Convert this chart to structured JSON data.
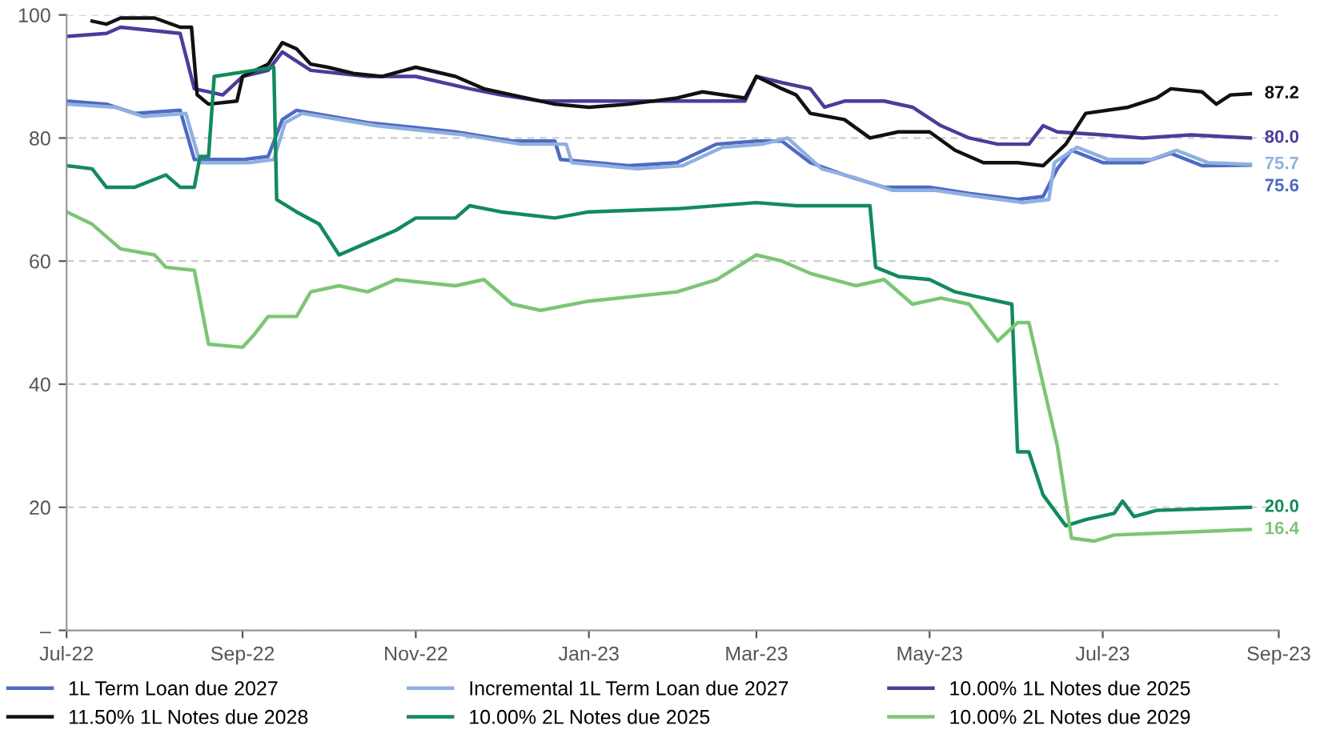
{
  "chart_data": {
    "type": "line",
    "xlim": [
      "2022-07-01",
      "2023-09-01"
    ],
    "xticks": [
      {
        "value": "2022-07-01",
        "label": "Jul-22"
      },
      {
        "value": "2022-09-01",
        "label": "Sep-22"
      },
      {
        "value": "2022-11-01",
        "label": "Nov-22"
      },
      {
        "value": "2023-01-01",
        "label": "Jan-23"
      },
      {
        "value": "2023-03-01",
        "label": "Mar-23"
      },
      {
        "value": "2023-05-01",
        "label": "May-23"
      },
      {
        "value": "2023-07-01",
        "label": "Jul-23"
      },
      {
        "value": "2023-09-01",
        "label": "Sep-23"
      }
    ],
    "ylim": [
      0,
      100
    ],
    "yticks": [
      {
        "value": 0,
        "label": "–"
      },
      20,
      40,
      60,
      80,
      100
    ],
    "grid": "y",
    "legend": "bottom",
    "line_style": "solid",
    "marker": "none",
    "series": [
      {
        "name": "1L Term Loan due 2027",
        "color": "#4e6ac2",
        "x": [
          "2022-07-01",
          "2022-07-15",
          "2022-07-25",
          "2022-08-10",
          "2022-08-15",
          "2022-09-01",
          "2022-09-10",
          "2022-09-15",
          "2022-09-20",
          "2022-10-15",
          "2022-11-15",
          "2022-12-05",
          "2022-12-20",
          "2022-12-22",
          "2023-01-15",
          "2023-02-01",
          "2023-02-15",
          "2023-03-01",
          "2023-03-10",
          "2023-03-20",
          "2023-04-01",
          "2023-04-15",
          "2023-05-01",
          "2023-05-15",
          "2023-06-01",
          "2023-06-10",
          "2023-06-15",
          "2023-06-20",
          "2023-07-01",
          "2023-07-15",
          "2023-07-25",
          "2023-08-05",
          "2023-08-22"
        ],
        "values": [
          86,
          85.5,
          84,
          84.5,
          76.5,
          76.5,
          77,
          83,
          84.5,
          82.5,
          81,
          79.5,
          79.5,
          76.5,
          75.5,
          76,
          79,
          79.5,
          79.5,
          76,
          74,
          72,
          72,
          71,
          70,
          70.5,
          75,
          78,
          76,
          76,
          77.5,
          75.5,
          75.6
        ],
        "value_labels": [
          null,
          null,
          null,
          null,
          null,
          null,
          null,
          null,
          null,
          null,
          null,
          null,
          null,
          null,
          null,
          null,
          null,
          null,
          null,
          null,
          null,
          null,
          null,
          null,
          null,
          null,
          null,
          null,
          null,
          null,
          null,
          null,
          "75.6"
        ]
      },
      {
        "name": "Incremental 1L Term Loan due 2027",
        "color": "#8fb0e0",
        "x": [
          "2022-07-01",
          "2022-07-18",
          "2022-07-28",
          "2022-08-12",
          "2022-08-17",
          "2022-09-03",
          "2022-09-12",
          "2022-09-16",
          "2022-09-22",
          "2022-10-18",
          "2022-11-18",
          "2022-12-08",
          "2022-12-24",
          "2022-12-26",
          "2023-01-18",
          "2023-02-03",
          "2023-02-17",
          "2023-03-03",
          "2023-03-12",
          "2023-03-24",
          "2023-04-05",
          "2023-04-18",
          "2023-05-03",
          "2023-05-18",
          "2023-06-03",
          "2023-06-12",
          "2023-06-14",
          "2023-06-22",
          "2023-07-03",
          "2023-07-18",
          "2023-07-27",
          "2023-08-07",
          "2023-08-22"
        ],
        "values": [
          85.5,
          85,
          83.5,
          84,
          76,
          76,
          76.5,
          82.5,
          84,
          82,
          80.5,
          79,
          79,
          76,
          75,
          75.5,
          78.5,
          79,
          80,
          75,
          73.5,
          71.5,
          71.5,
          70.5,
          69.5,
          70,
          76,
          78.5,
          76.5,
          76.5,
          78,
          76,
          75.7
        ],
        "value_labels": [
          null,
          null,
          null,
          null,
          null,
          null,
          null,
          null,
          null,
          null,
          null,
          null,
          null,
          null,
          null,
          null,
          null,
          null,
          null,
          null,
          null,
          null,
          null,
          null,
          null,
          null,
          null,
          null,
          null,
          null,
          null,
          null,
          "75.7"
        ]
      },
      {
        "name": "10.00% 1L Notes due 2025",
        "color": "#4a3d9a",
        "x": [
          "2022-07-01",
          "2022-07-15",
          "2022-07-20",
          "2022-08-10",
          "2022-08-15",
          "2022-08-25",
          "2022-09-01",
          "2022-09-10",
          "2022-09-15",
          "2022-09-25",
          "2022-10-15",
          "2022-11-01",
          "2022-11-20",
          "2022-12-01",
          "2022-12-15",
          "2023-01-01",
          "2023-02-25",
          "2023-03-01",
          "2023-03-10",
          "2023-03-20",
          "2023-03-25",
          "2023-04-01",
          "2023-04-15",
          "2023-04-25",
          "2023-05-05",
          "2023-05-15",
          "2023-05-25",
          "2023-06-05",
          "2023-06-10",
          "2023-06-15",
          "2023-07-01",
          "2023-07-15",
          "2023-08-01",
          "2023-08-22"
        ],
        "values": [
          96.5,
          97,
          98,
          97,
          88,
          87,
          90,
          91,
          94,
          91,
          90,
          90,
          88,
          87,
          86,
          86,
          86,
          90,
          89,
          88,
          85,
          86,
          86,
          85,
          82,
          80,
          79,
          79,
          82,
          81,
          80.5,
          80,
          80.5,
          80.0
        ],
        "value_labels": [
          null,
          null,
          null,
          null,
          null,
          null,
          null,
          null,
          null,
          null,
          null,
          null,
          null,
          null,
          null,
          null,
          null,
          null,
          null,
          null,
          null,
          null,
          null,
          null,
          null,
          null,
          null,
          null,
          null,
          null,
          null,
          null,
          null,
          "80.0"
        ]
      },
      {
        "name": "11.50% 1L Notes due 2028",
        "color": "#111111",
        "x": [
          "2022-07-10",
          "2022-07-15",
          "2022-07-20",
          "2022-08-01",
          "2022-08-10",
          "2022-08-14",
          "2022-08-16",
          "2022-08-20",
          "2022-08-30",
          "2022-09-01",
          "2022-09-10",
          "2022-09-15",
          "2022-09-20",
          "2022-09-25",
          "2022-10-01",
          "2022-10-10",
          "2022-10-20",
          "2022-11-01",
          "2022-11-15",
          "2022-11-25",
          "2022-12-05",
          "2022-12-20",
          "2023-01-01",
          "2023-01-15",
          "2023-02-01",
          "2023-02-10",
          "2023-02-25",
          "2023-03-01",
          "2023-03-10",
          "2023-03-15",
          "2023-03-20",
          "2023-04-01",
          "2023-04-10",
          "2023-04-20",
          "2023-05-01",
          "2023-05-10",
          "2023-05-20",
          "2023-06-01",
          "2023-06-10",
          "2023-06-18",
          "2023-06-25",
          "2023-07-10",
          "2023-07-20",
          "2023-07-25",
          "2023-08-05",
          "2023-08-10",
          "2023-08-15",
          "2023-08-22"
        ],
        "values": [
          99,
          98.5,
          99.5,
          99.5,
          98,
          98,
          87,
          85.5,
          86,
          90,
          92,
          95.5,
          94.5,
          92,
          91.5,
          90.5,
          90,
          91.5,
          90,
          88,
          87,
          85.5,
          85,
          85.5,
          86.5,
          87.5,
          86.5,
          90,
          88,
          87,
          84,
          83,
          80,
          81,
          81,
          78,
          76,
          76,
          75.5,
          79,
          84,
          85,
          86.5,
          88,
          87.5,
          85.5,
          87,
          87.2
        ],
        "value_labels": [
          null,
          null,
          null,
          null,
          null,
          null,
          null,
          null,
          null,
          null,
          null,
          null,
          null,
          null,
          null,
          null,
          null,
          null,
          null,
          null,
          null,
          null,
          null,
          null,
          null,
          null,
          null,
          null,
          null,
          null,
          null,
          null,
          null,
          null,
          null,
          null,
          null,
          null,
          null,
          null,
          null,
          null,
          null,
          null,
          null,
          null,
          null,
          "87.2"
        ]
      },
      {
        "name": "10.00% 2L Notes due 2025",
        "color": "#138a5a",
        "x": [
          "2022-07-01",
          "2022-07-10",
          "2022-07-15",
          "2022-07-25",
          "2022-08-05",
          "2022-08-10",
          "2022-08-15",
          "2022-08-17",
          "2022-08-20",
          "2022-08-22",
          "2022-09-05",
          "2022-09-12",
          "2022-09-13",
          "2022-09-20",
          "2022-09-28",
          "2022-10-05",
          "2022-10-15",
          "2022-10-25",
          "2022-11-01",
          "2022-11-15",
          "2022-11-20",
          "2022-12-01",
          "2022-12-20",
          "2023-01-01",
          "2023-02-01",
          "2023-03-01",
          "2023-03-15",
          "2023-04-10",
          "2023-04-12",
          "2023-04-20",
          "2023-05-01",
          "2023-05-10",
          "2023-05-20",
          "2023-05-30",
          "2023-06-01",
          "2023-06-05",
          "2023-06-10",
          "2023-06-18",
          "2023-06-25",
          "2023-07-05",
          "2023-07-08",
          "2023-07-12",
          "2023-07-20",
          "2023-08-22"
        ],
        "values": [
          75.5,
          75,
          72,
          72,
          74,
          72,
          72,
          77,
          77,
          90,
          91,
          91.5,
          70,
          68,
          66,
          61,
          63,
          65,
          67,
          67,
          69,
          68,
          67,
          68,
          68.5,
          69.5,
          69,
          69,
          59,
          57.5,
          57,
          55,
          54,
          53,
          29,
          29,
          22,
          17,
          18,
          19,
          21,
          18.5,
          19.5,
          20.0
        ],
        "value_labels": [
          null,
          null,
          null,
          null,
          null,
          null,
          null,
          null,
          null,
          null,
          null,
          null,
          null,
          null,
          null,
          null,
          null,
          null,
          null,
          null,
          null,
          null,
          null,
          null,
          null,
          null,
          null,
          null,
          null,
          null,
          null,
          null,
          null,
          null,
          null,
          null,
          null,
          null,
          null,
          null,
          null,
          null,
          null,
          "20.0"
        ]
      },
      {
        "name": "10.00% 2L Notes due 2029",
        "color": "#7cc576",
        "x": [
          "2022-07-01",
          "2022-07-10",
          "2022-07-20",
          "2022-08-01",
          "2022-08-05",
          "2022-08-15",
          "2022-08-20",
          "2022-09-01",
          "2022-09-05",
          "2022-09-10",
          "2022-09-20",
          "2022-09-25",
          "2022-10-05",
          "2022-10-15",
          "2022-10-25",
          "2022-11-15",
          "2022-11-25",
          "2022-12-05",
          "2022-12-15",
          "2023-01-01",
          "2023-02-01",
          "2023-02-15",
          "2023-03-01",
          "2023-03-10",
          "2023-03-20",
          "2023-04-05",
          "2023-04-15",
          "2023-04-25",
          "2023-05-05",
          "2023-05-15",
          "2023-05-25",
          "2023-06-01",
          "2023-06-05",
          "2023-06-10",
          "2023-06-15",
          "2023-06-20",
          "2023-06-28",
          "2023-07-05",
          "2023-08-22"
        ],
        "values": [
          68,
          66,
          62,
          61,
          59,
          58.5,
          46.5,
          46,
          48,
          51,
          51,
          55,
          56,
          55,
          57,
          56,
          57,
          53,
          52,
          53.5,
          55,
          57,
          61,
          60,
          58,
          56,
          57,
          53,
          54,
          53,
          47,
          50,
          50,
          40,
          30,
          15,
          14.5,
          15.5,
          16.4
        ],
        "value_labels": [
          null,
          null,
          null,
          null,
          null,
          null,
          null,
          null,
          null,
          null,
          null,
          null,
          null,
          null,
          null,
          null,
          null,
          null,
          null,
          null,
          null,
          null,
          null,
          null,
          null,
          null,
          null,
          null,
          null,
          null,
          null,
          null,
          null,
          null,
          null,
          null,
          null,
          null,
          "16.4"
        ]
      }
    ]
  }
}
